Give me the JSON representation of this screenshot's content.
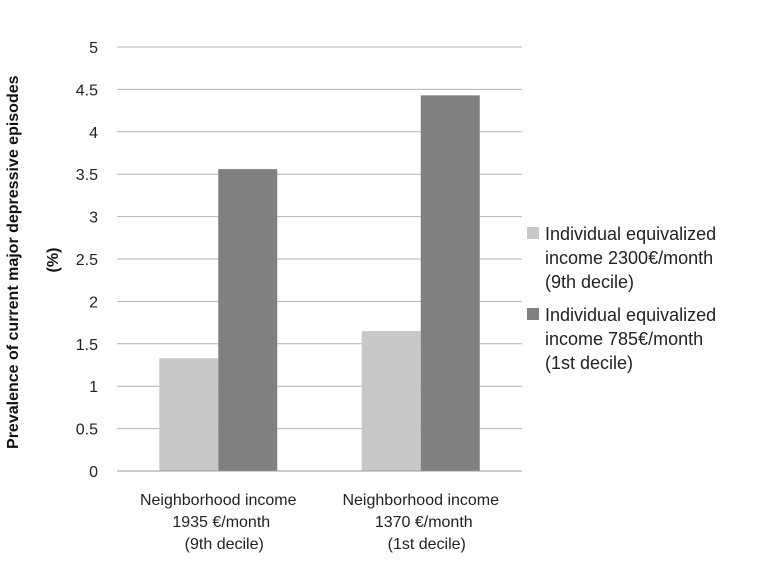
{
  "chart_data": {
    "type": "bar",
    "ylabel": "Prevalence of current major depressive episodes (%)",
    "ylabel_lines": [
      "Prevalence of current major depressive episodes",
      "(%)"
    ],
    "ylim": [
      0,
      5
    ],
    "yticks": [
      "0",
      "0.5",
      "1",
      "1.5",
      "2",
      "2.5",
      "3",
      "3.5",
      "4",
      "4.5",
      "5"
    ],
    "grid": true,
    "legend_position": "right",
    "categories": [
      "Neighborhood income\n1935 €/month\n(9th decile)",
      "Neighborhood income\n1370 €/month\n(1st decile)"
    ],
    "series": [
      {
        "name": "Individual equivalized\nincome 2300€/month\n(9th decile)",
        "color": "#c8c8c8",
        "values": [
          1.33,
          1.65
        ]
      },
      {
        "name": "Individual equivalized\nincome 785€/month\n(1st decile)",
        "color": "#808080",
        "values": [
          3.56,
          4.43
        ]
      }
    ]
  }
}
